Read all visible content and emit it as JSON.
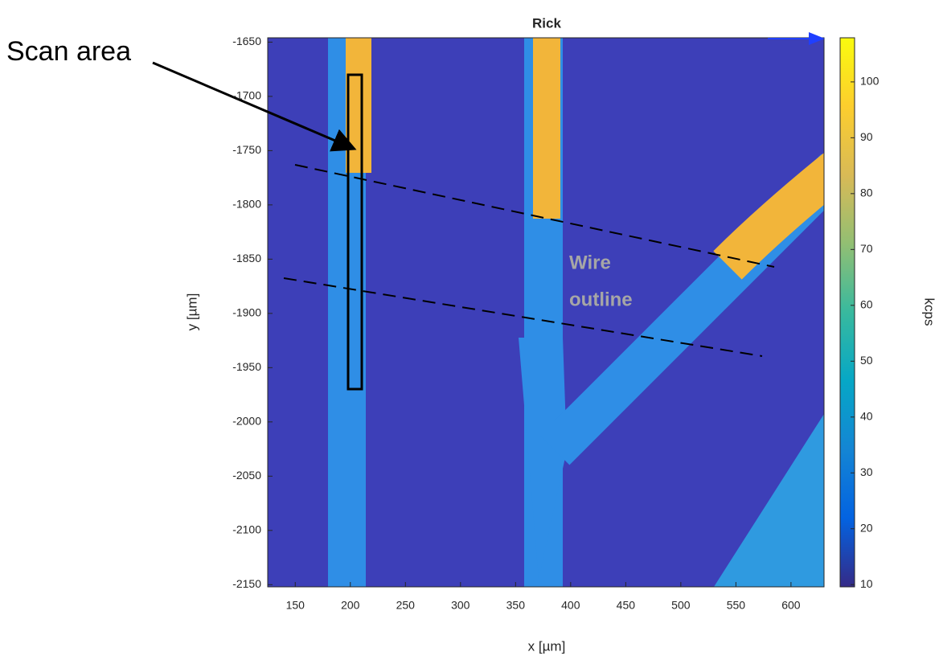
{
  "chart_data": {
    "type": "heatmap",
    "title": "Rick",
    "xlabel": "x [µm]",
    "ylabel": "y [µm]",
    "xlim": [
      125,
      630
    ],
    "xticks": [
      150,
      200,
      250,
      300,
      350,
      400,
      450,
      500,
      550,
      600
    ],
    "ylim": [
      -2152,
      -1646
    ],
    "yticks": [
      -1650,
      -1700,
      -1750,
      -1800,
      -1850,
      -1900,
      -1950,
      -2000,
      -2050,
      -2100,
      -2150
    ],
    "colorbar": {
      "label": "kcps",
      "lim": [
        9.6,
        107.9
      ],
      "ticks": [
        10,
        20,
        30,
        40,
        50,
        60,
        70,
        80,
        90,
        100
      ],
      "colors": [
        "#352a87",
        "#0363e1",
        "#1485d4",
        "#06a7c6",
        "#38b99e",
        "#92bf73",
        "#d9ba56",
        "#fcce2e",
        "#f9fb0e"
      ]
    },
    "annotations": {
      "scan_area": "Scan area",
      "wire_outline": [
        "Wire",
        "outline"
      ]
    }
  }
}
